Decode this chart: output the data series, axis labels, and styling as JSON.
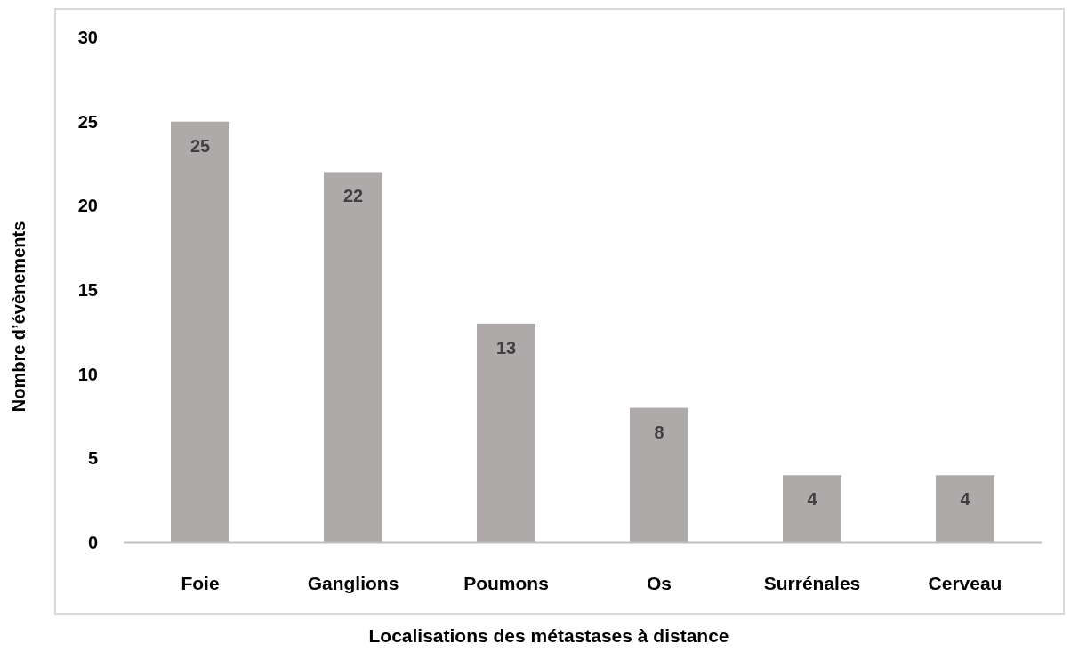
{
  "chart_data": {
    "type": "bar",
    "xlabel": "Localisations des métastases à distance",
    "ylabel": "Nombre d’évènements",
    "categories": [
      "Foie",
      "Ganglions",
      "Poumons",
      "Os",
      "Surrénales",
      "Cerveau"
    ],
    "values": [
      25,
      22,
      13,
      8,
      4,
      4
    ],
    "color": "#aeaaaa",
    "ylim": [
      0,
      30
    ],
    "yticks": [
      0,
      5,
      10,
      15,
      20,
      25,
      30
    ],
    "grid": false,
    "data_labels": true
  }
}
